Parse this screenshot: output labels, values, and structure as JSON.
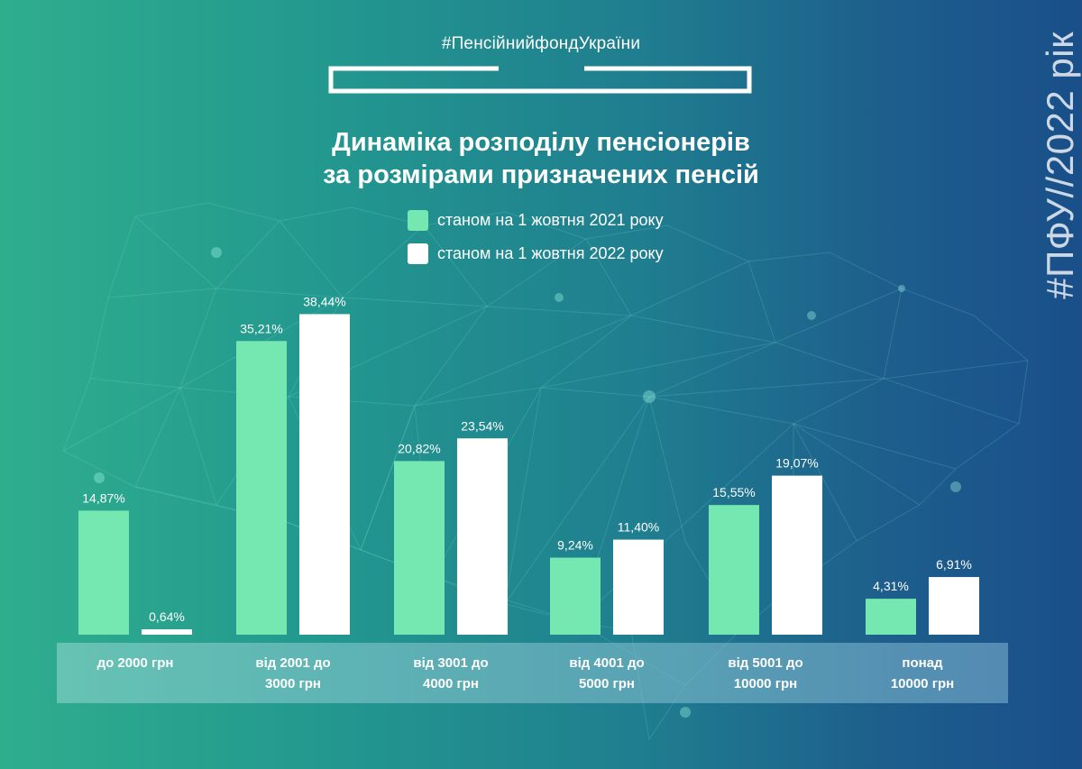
{
  "hashtag": "#ПенсійнийфондУкраїни",
  "title_line1": "Динаміка розподілу пенсіонерів",
  "title_line2": "за розмірами призначених пенсій",
  "vertical_tag": "#ПФУ//2022 рік",
  "colors": {
    "series_2021": "#74e8b0",
    "series_2022": "#ffffff"
  },
  "chart_data": {
    "type": "bar",
    "title": "Динаміка розподілу пенсіонерів за розмірами призначених пенсій",
    "categories": [
      [
        "до 2000 грн"
      ],
      [
        "від 2001 до",
        "3000 грн"
      ],
      [
        "від 3001 до",
        "4000 грн"
      ],
      [
        "від 4001 до",
        "5000 грн"
      ],
      [
        "від 5001 до",
        "10000 грн"
      ],
      [
        "понад",
        "10000 грн"
      ]
    ],
    "series": [
      {
        "name": "станом на 1 жовтня 2021 року",
        "values": [
          14.87,
          35.21,
          20.82,
          9.24,
          15.55,
          4.31
        ],
        "labels": [
          "14,87%",
          "35,21%",
          "20,82%",
          "9,24%",
          "15,55%",
          "4,31%"
        ]
      },
      {
        "name": "станом на 1 жовтня 2022 року",
        "values": [
          0.64,
          38.44,
          23.54,
          11.4,
          19.07,
          6.91
        ],
        "labels": [
          "0,64%",
          "38,44%",
          "23,54%",
          "11,40%",
          "19,07%",
          "6,91%"
        ]
      }
    ],
    "legend_position": "top-center",
    "grid": false
  }
}
